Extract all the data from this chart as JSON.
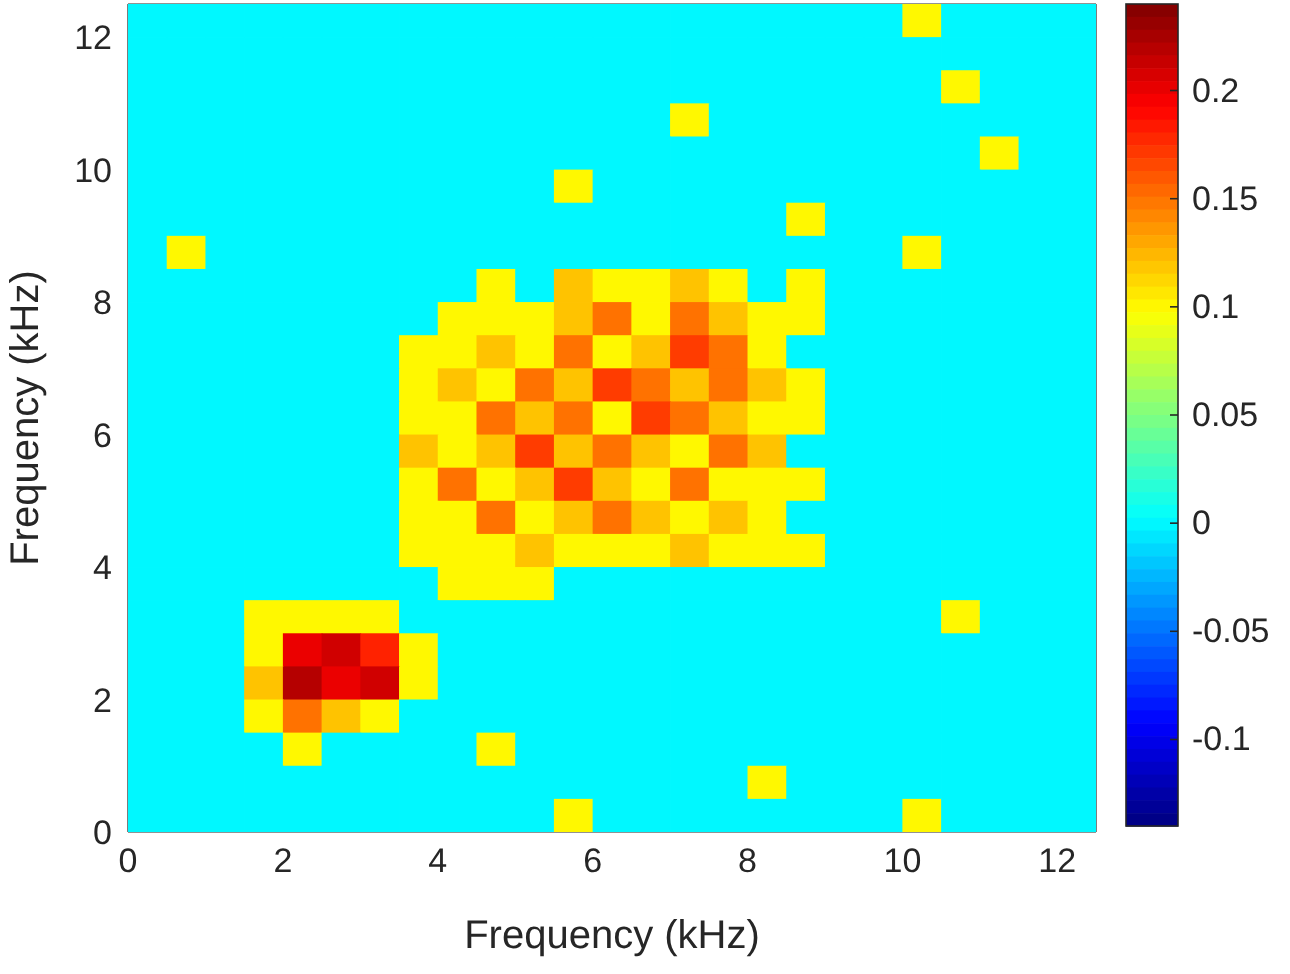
{
  "chart_data": {
    "type": "heatmap",
    "xlabel": "Frequency (kHz)",
    "ylabel": "Frequency (kHz)",
    "x": [
      0.25,
      0.75,
      1.25,
      1.75,
      2.25,
      2.75,
      3.25,
      3.75,
      4.25,
      4.75,
      5.25,
      5.75,
      6.25,
      6.75,
      7.25,
      7.75,
      8.25,
      8.75,
      9.25,
      9.75,
      10.25,
      10.75,
      11.25,
      11.75,
      12.25
    ],
    "y": [
      12.25,
      11.75,
      11.25,
      10.75,
      10.25,
      9.75,
      9.25,
      8.75,
      8.25,
      7.75,
      7.25,
      6.75,
      6.25,
      5.75,
      5.25,
      4.75,
      4.25,
      3.75,
      3.25,
      2.75,
      2.25,
      1.75,
      1.25,
      0.75,
      0.25
    ],
    "xlim": [
      0,
      12.5
    ],
    "ylim": [
      0,
      12.5
    ],
    "xticks": [
      0,
      2,
      4,
      6,
      8,
      10,
      12
    ],
    "yticks": [
      0,
      2,
      4,
      6,
      8,
      10,
      12
    ],
    "clim": [
      -0.14,
      0.24
    ],
    "cticks": [
      -0.1,
      -0.05,
      0,
      0.05,
      0.1,
      0.15,
      0.2
    ],
    "cells": [
      [
        0,
        0,
        0,
        0,
        0,
        0,
        0,
        0,
        0,
        0,
        0,
        0,
        0,
        0,
        0,
        0,
        0,
        0,
        0,
        0,
        0.1,
        0,
        0,
        0,
        0
      ],
      [
        0,
        0,
        0,
        0,
        0,
        0,
        0,
        0,
        0,
        0,
        0,
        0,
        0,
        0,
        0,
        0,
        0,
        0,
        0,
        0,
        0,
        0,
        0,
        0,
        0
      ],
      [
        0,
        0,
        0,
        0,
        0,
        0,
        0,
        0,
        0,
        0,
        0,
        0,
        0,
        0,
        0,
        0,
        0,
        0,
        0,
        0,
        0,
        0.1,
        0,
        0,
        0
      ],
      [
        0,
        0,
        0,
        0,
        0,
        0,
        0,
        0,
        0,
        0,
        0,
        0,
        0,
        0,
        0.1,
        0,
        0,
        0,
        0,
        0,
        0,
        0,
        0,
        0,
        0
      ],
      [
        0,
        0,
        0,
        0,
        0,
        0,
        0,
        0,
        0,
        0,
        0,
        0,
        0,
        0,
        0,
        0,
        0,
        0,
        0,
        0,
        0,
        0,
        0.1,
        0,
        0
      ],
      [
        0,
        0,
        0,
        0,
        0,
        0,
        0,
        0,
        0,
        0,
        0,
        0.1,
        0,
        0,
        0,
        0,
        0,
        0,
        0,
        0,
        0,
        0,
        0,
        0,
        0
      ],
      [
        0,
        0,
        0,
        0,
        0,
        0,
        0,
        0,
        0,
        0,
        0,
        0,
        0,
        0,
        0,
        0,
        0,
        0.1,
        0,
        0,
        0,
        0,
        0,
        0,
        0
      ],
      [
        0,
        0.1,
        0,
        0,
        0,
        0,
        0,
        0,
        0,
        0,
        0,
        0,
        0,
        0,
        0,
        0,
        0,
        0,
        0,
        0,
        0.1,
        0,
        0,
        0,
        0
      ],
      [
        0,
        0,
        0,
        0,
        0,
        0,
        0,
        0,
        0,
        0.1,
        0,
        0.12,
        0.1,
        0.1,
        0.12,
        0.1,
        0,
        0.1,
        0,
        0,
        0,
        0,
        0,
        0,
        0
      ],
      [
        0,
        0,
        0,
        0,
        0,
        0,
        0,
        0,
        0.1,
        0.1,
        0.1,
        0.12,
        0.15,
        0.1,
        0.15,
        0.12,
        0.1,
        0.1,
        0,
        0,
        0,
        0,
        0,
        0,
        0
      ],
      [
        0,
        0,
        0,
        0,
        0,
        0,
        0,
        0.1,
        0.1,
        0.12,
        0.1,
        0.15,
        0.1,
        0.12,
        0.17,
        0.15,
        0.1,
        0,
        0,
        0,
        0,
        0,
        0,
        0,
        0
      ],
      [
        0,
        0,
        0,
        0,
        0,
        0,
        0,
        0.1,
        0.12,
        0.1,
        0.15,
        0.12,
        0.17,
        0.15,
        0.12,
        0.15,
        0.12,
        0.1,
        0,
        0,
        0,
        0,
        0,
        0,
        0
      ],
      [
        0,
        0,
        0,
        0,
        0,
        0,
        0,
        0.1,
        0.1,
        0.15,
        0.12,
        0.15,
        0.1,
        0.17,
        0.15,
        0.12,
        0.1,
        0.1,
        0,
        0,
        0,
        0,
        0,
        0,
        0
      ],
      [
        0,
        0,
        0,
        0,
        0,
        0,
        0,
        0.12,
        0.1,
        0.12,
        0.17,
        0.12,
        0.15,
        0.12,
        0.1,
        0.15,
        0.12,
        0,
        0,
        0,
        0,
        0,
        0,
        0,
        0
      ],
      [
        0,
        0,
        0,
        0,
        0,
        0,
        0,
        0.1,
        0.15,
        0.1,
        0.12,
        0.17,
        0.12,
        0.1,
        0.15,
        0.1,
        0.1,
        0.1,
        0,
        0,
        0,
        0,
        0,
        0,
        0
      ],
      [
        0,
        0,
        0,
        0,
        0,
        0,
        0,
        0.1,
        0.1,
        0.15,
        0.1,
        0.12,
        0.15,
        0.12,
        0.1,
        0.12,
        0.1,
        0,
        0,
        0,
        0,
        0,
        0,
        0,
        0
      ],
      [
        0,
        0,
        0,
        0,
        0,
        0,
        0,
        0.1,
        0.1,
        0.1,
        0.12,
        0.1,
        0.1,
        0.1,
        0.12,
        0.1,
        0.1,
        0.1,
        0,
        0,
        0,
        0,
        0,
        0,
        0
      ],
      [
        0,
        0,
        0,
        0,
        0,
        0,
        0,
        0,
        0.1,
        0.1,
        0.1,
        0,
        0,
        0,
        0,
        0,
        0,
        0,
        0,
        0,
        0,
        0,
        0,
        0,
        0
      ],
      [
        0,
        0,
        0,
        0.1,
        0.1,
        0.1,
        0.1,
        0,
        0,
        0,
        0,
        0,
        0,
        0,
        0,
        0,
        0,
        0,
        0,
        0,
        0,
        0.1,
        0,
        0,
        0
      ],
      [
        0,
        0,
        0,
        0.1,
        0.2,
        0.21,
        0.18,
        0.1,
        0,
        0,
        0,
        0,
        0,
        0,
        0,
        0,
        0,
        0,
        0,
        0,
        0,
        0,
        0,
        0,
        0
      ],
      [
        0,
        0,
        0,
        0.12,
        0.22,
        0.2,
        0.21,
        0.1,
        0,
        0,
        0,
        0,
        0,
        0,
        0,
        0,
        0,
        0,
        0,
        0,
        0,
        0,
        0,
        0,
        0
      ],
      [
        0,
        0,
        0,
        0.1,
        0.15,
        0.12,
        0.1,
        0,
        0,
        0,
        0,
        0,
        0,
        0,
        0,
        0,
        0,
        0,
        0,
        0,
        0,
        0,
        0,
        0,
        0
      ],
      [
        0,
        0,
        0,
        0,
        0.1,
        0,
        0,
        0,
        0,
        0.1,
        0,
        0,
        0,
        0,
        0,
        0,
        0,
        0,
        0,
        0,
        0,
        0,
        0,
        0,
        0
      ],
      [
        0,
        0,
        0,
        0,
        0,
        0,
        0,
        0,
        0,
        0,
        0,
        0,
        0,
        0,
        0,
        0,
        0.1,
        0,
        0,
        0,
        0,
        0,
        0,
        0,
        0
      ],
      [
        0,
        0,
        0,
        0,
        0,
        0,
        0,
        0,
        0,
        0,
        0,
        0.1,
        0,
        0,
        0,
        0,
        0,
        0,
        0,
        0,
        0.1,
        0,
        0,
        0,
        0
      ]
    ]
  }
}
